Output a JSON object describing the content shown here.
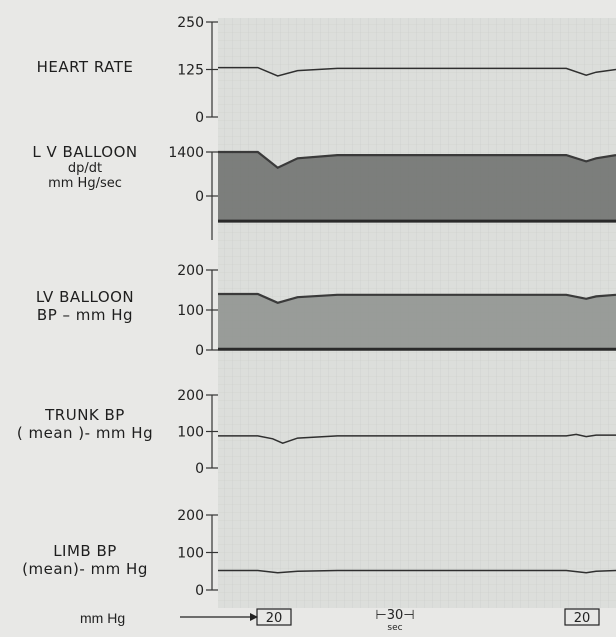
{
  "chart_data": {
    "type": "line",
    "panels": [
      {
        "id": "heart_rate",
        "label_lines": [
          "HEART RATE"
        ],
        "y_ticks": [
          "250",
          "125",
          "0"
        ],
        "ylim": [
          0,
          250
        ],
        "trace": {
          "x_sec": [
            0,
            40,
            60,
            80,
            120,
            300,
            350,
            370,
            380,
            400
          ],
          "y": [
            130,
            130,
            108,
            122,
            128,
            128,
            128,
            110,
            118,
            125
          ]
        }
      },
      {
        "id": "lv_dpdt",
        "label_lines": [
          "L V BALLOON",
          "dp/dt",
          "mm Hg/sec"
        ],
        "y_ticks": [
          "1400",
          "0"
        ],
        "ylim": [
          -1400,
          1400
        ],
        "band_top": {
          "x_sec": [
            0,
            40,
            60,
            80,
            120,
            300,
            350,
            370,
            380,
            400
          ],
          "y": [
            1400,
            1400,
            900,
            1200,
            1300,
            1300,
            1300,
            1100,
            1200,
            1300
          ]
        },
        "band_bottom": {
          "x_sec": [
            0,
            400
          ],
          "y": [
            -800,
            -800
          ]
        }
      },
      {
        "id": "lv_bp",
        "label_lines": [
          "LV BALLOON",
          "BP  – mm Hg"
        ],
        "y_ticks": [
          "200",
          "100",
          "0"
        ],
        "ylim": [
          0,
          200
        ],
        "band_top": {
          "x_sec": [
            0,
            40,
            60,
            80,
            120,
            300,
            350,
            370,
            380,
            400
          ],
          "y": [
            140,
            140,
            118,
            132,
            138,
            138,
            138,
            128,
            134,
            138
          ]
        },
        "band_bottom": {
          "x_sec": [
            0,
            400
          ],
          "y": [
            2,
            2
          ]
        }
      },
      {
        "id": "trunk_bp",
        "label_lines": [
          "TRUNK BP",
          "( mean )- mm Hg"
        ],
        "y_ticks": [
          "200",
          "100",
          "0"
        ],
        "ylim": [
          0,
          200
        ],
        "trace": {
          "x_sec": [
            0,
            40,
            55,
            65,
            80,
            120,
            300,
            350,
            360,
            370,
            380,
            400
          ],
          "y": [
            88,
            88,
            80,
            68,
            82,
            88,
            88,
            88,
            92,
            86,
            90,
            90
          ]
        }
      },
      {
        "id": "limb_bp",
        "label_lines": [
          "LIMB BP",
          "(mean)- mm Hg"
        ],
        "y_ticks": [
          "200",
          "100",
          "0"
        ],
        "ylim": [
          0,
          200
        ],
        "trace": {
          "x_sec": [
            0,
            40,
            60,
            80,
            120,
            300,
            350,
            370,
            380,
            400
          ],
          "y": [
            52,
            52,
            46,
            50,
            52,
            52,
            52,
            46,
            50,
            52
          ]
        }
      }
    ],
    "bottom": {
      "label": "mm Hg",
      "markers": [
        "20",
        "20"
      ],
      "timescale": "⊢30⊣",
      "timescale_unit": "sec"
    }
  }
}
